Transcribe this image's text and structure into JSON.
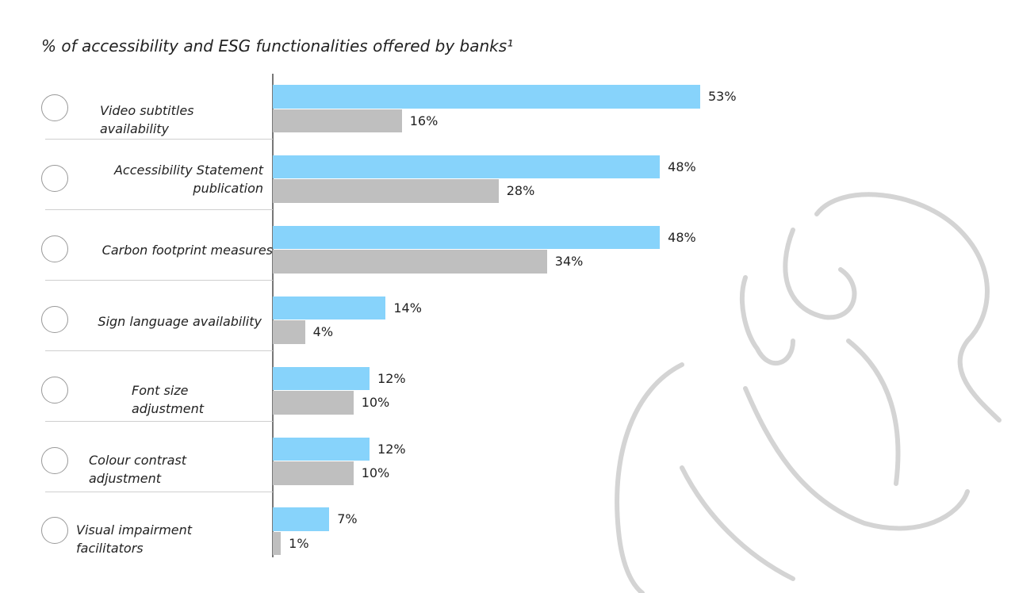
{
  "chart_data": {
    "type": "bar",
    "orientation": "horizontal",
    "title": "% of accessibility and ESG functionalities offered by banks¹",
    "categories": [
      "Video subtitles availability",
      "Accessibility Statement publication",
      "Carbon footprint measures",
      "Sign language availability",
      "Font size adjustment",
      "Colour contrast adjustment",
      "Visual impairment facilitators"
    ],
    "series": [
      {
        "color": "#87d3fb",
        "values": [
          53,
          48,
          48,
          14,
          12,
          12,
          7
        ],
        "value_labels": [
          "53%",
          "48%",
          "48%",
          "14%",
          "12%",
          "12%",
          "7%"
        ]
      },
      {
        "color": "#bfbfbf",
        "values": [
          16,
          28,
          34,
          4,
          10,
          10,
          1
        ],
        "value_labels": [
          "16%",
          "28%",
          "34%",
          "4%",
          "10%",
          "10%",
          "1%"
        ]
      }
    ]
  }
}
